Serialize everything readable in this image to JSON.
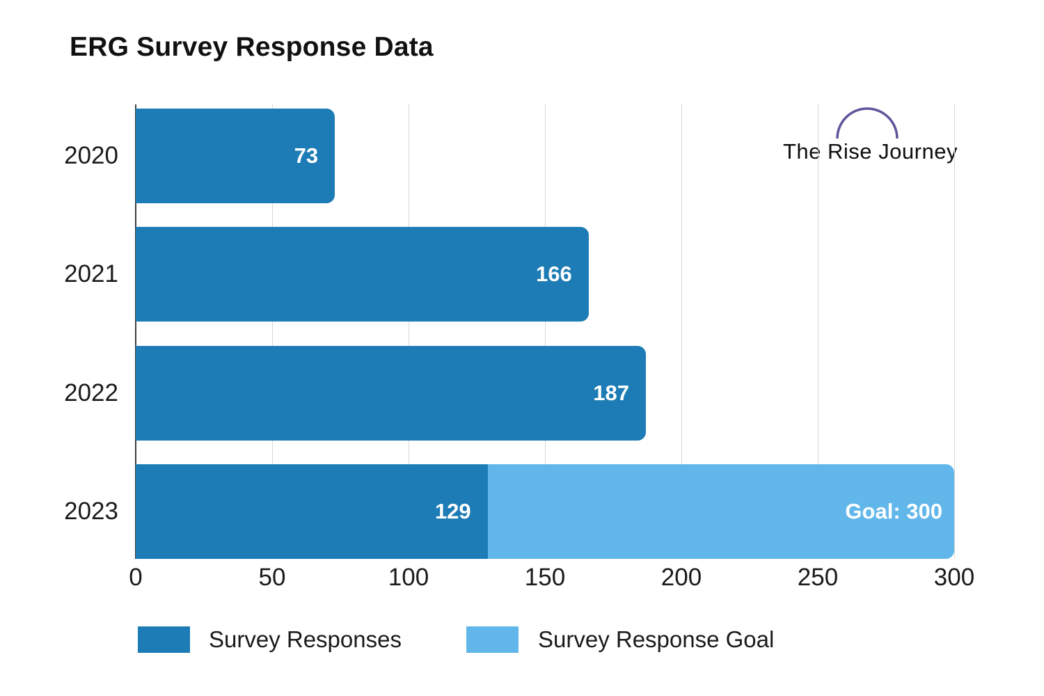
{
  "title": "ERG Survey Response Data",
  "logo": {
    "text": "The Rise Journey",
    "arc_color": "#5e549a"
  },
  "chart_data": {
    "type": "bar",
    "orientation": "horizontal",
    "title": "ERG Survey Response Data",
    "categories": [
      "2020",
      "2021",
      "2022",
      "2023"
    ],
    "series": [
      {
        "name": "Survey Responses",
        "values": [
          73,
          166,
          187,
          129
        ],
        "color": "#1d7cb5"
      },
      {
        "name": "Survey Response Goal",
        "values": [
          null,
          null,
          null,
          300
        ],
        "color": "#62b7ea"
      }
    ],
    "bar_value_labels": [
      "73",
      "166",
      "187",
      "129"
    ],
    "goal_bar_label": "Goal: 300",
    "xlim": [
      0,
      300
    ],
    "x_ticks": [
      0,
      50,
      100,
      150,
      200,
      250,
      300
    ],
    "grid": true,
    "gridline_color": "#d7d7d7",
    "axis_color": "#3f3f3f",
    "legend_position": "bottom"
  },
  "legend": {
    "items": [
      {
        "label": "Survey Responses",
        "color": "#1d7cb5"
      },
      {
        "label": "Survey Response Goal",
        "color": "#62b7ea"
      }
    ]
  }
}
